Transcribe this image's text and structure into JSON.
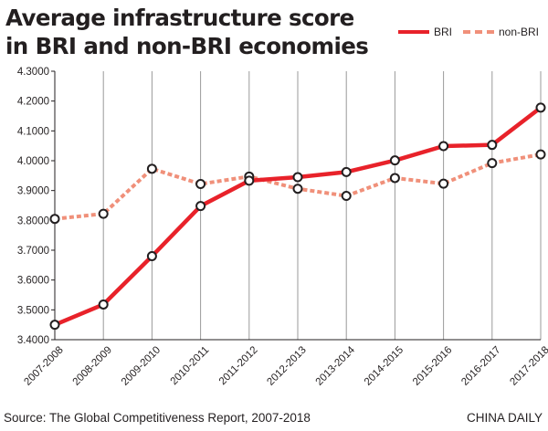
{
  "chart_data": {
    "type": "line",
    "title": "Average infrastructure score in BRI and non-BRI economies",
    "categories": [
      "2007-2008",
      "2008-2009",
      "2009-2010",
      "2010-2011",
      "2011-2012",
      "2012-2013",
      "2013-2014",
      "2014-2015",
      "2015-2016",
      "2016-2017",
      "2017-2018"
    ],
    "series": [
      {
        "name": "BRI",
        "color": "#e8222a",
        "style": "solid",
        "values": [
          3.45,
          3.518,
          3.68,
          3.848,
          3.933,
          3.945,
          3.962,
          4.001,
          4.049,
          4.053,
          4.178
        ]
      },
      {
        "name": "non-BRI",
        "color": "#f0907a",
        "style": "dashed",
        "values": [
          3.805,
          3.822,
          3.973,
          3.922,
          3.947,
          3.906,
          3.882,
          3.942,
          3.923,
          3.992,
          4.021
        ]
      }
    ],
    "yticks": [
      "4.3000",
      "4.2000",
      "4.1000",
      "4.0000",
      "3.9000",
      "3.8000",
      "3.7000",
      "3.6000",
      "3.5000",
      "3.4000"
    ],
    "ylim": [
      3.4,
      4.3
    ],
    "grid": "vertical",
    "legend": "top-right"
  },
  "source": "Source: The Global Competitiveness Report, 2007-2018",
  "brand": "CHINA DAILY"
}
